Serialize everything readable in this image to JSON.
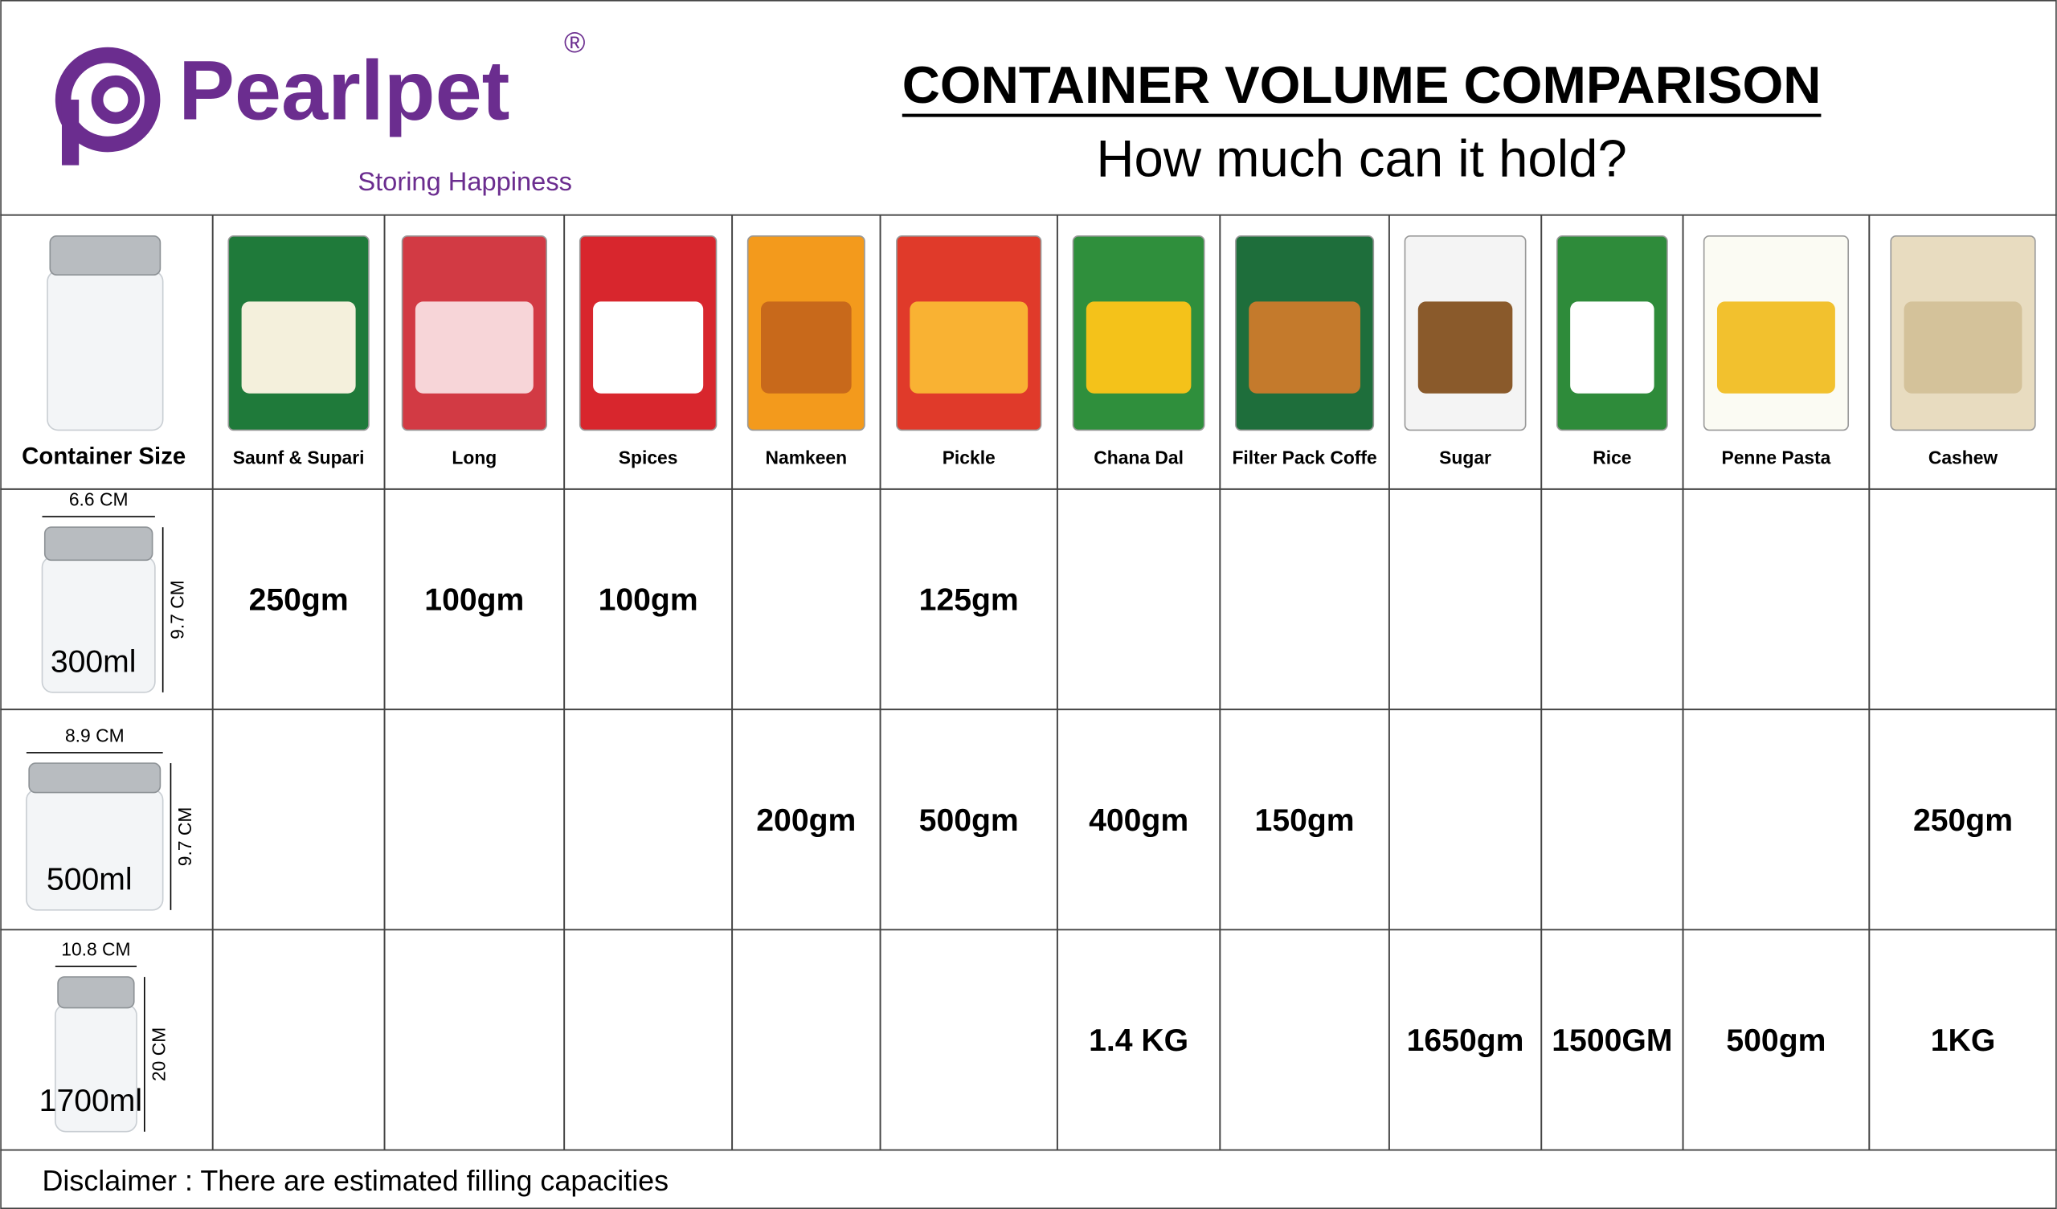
{
  "header": {
    "brand": "Pearlpet",
    "registered": "®",
    "tagline": "Storing Happiness",
    "title": "CONTAINER VOLUME COMPARISON",
    "subtitle": "How much can it hold?"
  },
  "table": {
    "corner": "Container Size",
    "products": [
      "Saunf & Supari",
      "Long",
      "Spices",
      "Namkeen",
      "Pickle",
      "Chana Dal",
      "Filter Pack Coffe",
      "Sugar",
      "Rice",
      "Penne Pasta",
      "Cashew"
    ],
    "rows": [
      {
        "width": "6.6 CM",
        "height": "9.7 CM",
        "volume": "300ml",
        "cells": [
          "250gm",
          "100gm",
          "100gm",
          null,
          "125gm",
          null,
          null,
          null,
          null,
          null,
          null
        ]
      },
      {
        "width": "8.9 CM",
        "height": "9.7 CM",
        "volume": "500ml",
        "cells": [
          null,
          null,
          null,
          "200gm",
          "500gm",
          "400gm",
          "150gm",
          null,
          null,
          null,
          "250gm"
        ]
      },
      {
        "width": "10.8 CM",
        "height": "20 CM",
        "volume": "1700ml",
        "cells": [
          null,
          null,
          null,
          null,
          null,
          "1.4 KG",
          null,
          "1650gm",
          "1500GM",
          "500gm",
          "1KG"
        ]
      }
    ]
  },
  "disclaimer": "Disclaimer : There are estimated filling capacities"
}
